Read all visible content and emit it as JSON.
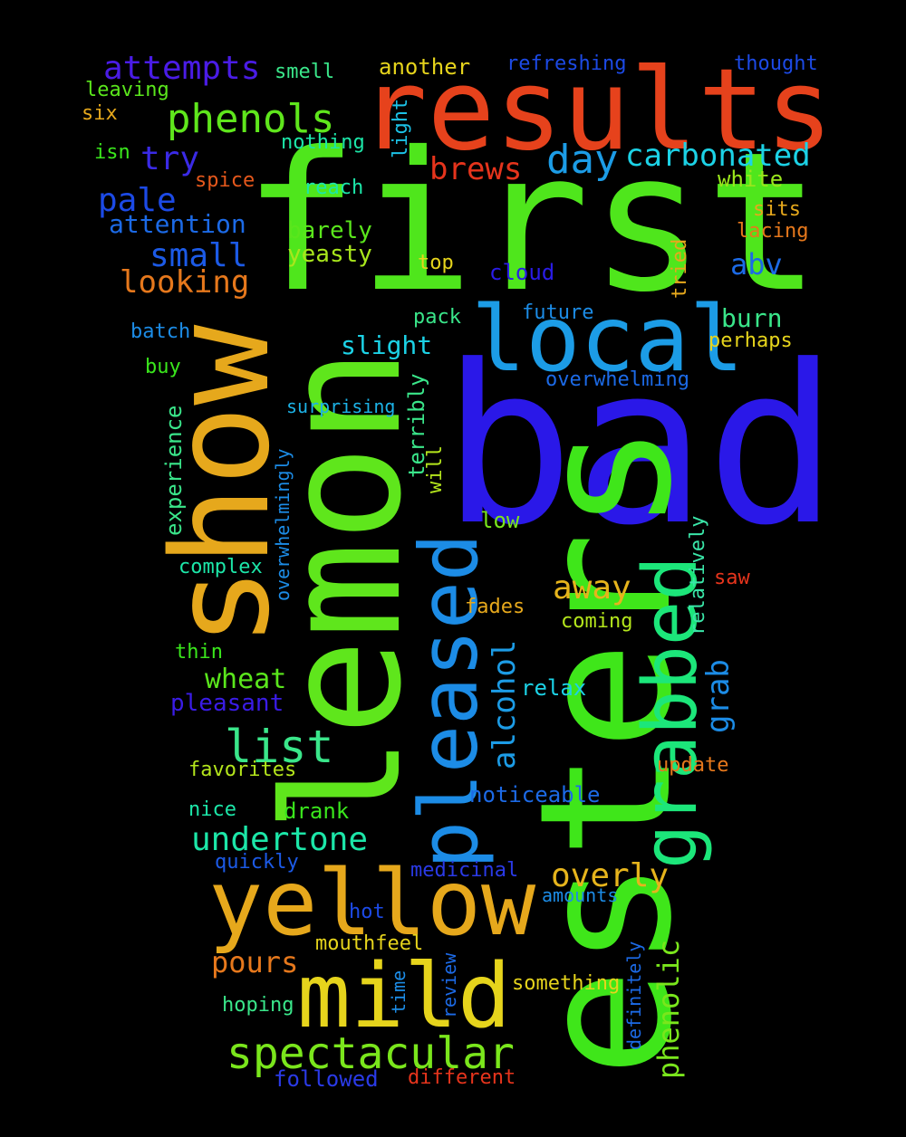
{
  "words": [
    {
      "text": "bad",
      "color": "#2a18e8",
      "rotated": false
    },
    {
      "text": "first",
      "color": "#4fe61c",
      "rotated": false
    },
    {
      "text": "esters",
      "color": "#3fe61a",
      "rotated": true
    },
    {
      "text": "lemon",
      "color": "#5fe61c",
      "rotated": true
    },
    {
      "text": "results",
      "color": "#e6421c",
      "rotated": false
    },
    {
      "text": "show",
      "color": "#e6a81c",
      "rotated": true
    },
    {
      "text": "yellow",
      "color": "#e6a81c",
      "rotated": false
    },
    {
      "text": "mild",
      "color": "#e6d41c",
      "rotated": false
    },
    {
      "text": "local",
      "color": "#1c9ce6",
      "rotated": false
    },
    {
      "text": "pleased",
      "color": "#1c8ce6",
      "rotated": true
    },
    {
      "text": "grabbed",
      "color": "#1ce67a",
      "rotated": true
    },
    {
      "text": "spectacular",
      "color": "#7ae61c",
      "rotated": false
    },
    {
      "text": "phenols",
      "color": "#5fe61c",
      "rotated": false
    },
    {
      "text": "attempts",
      "color": "#4a1ce6",
      "rotated": false
    },
    {
      "text": "carbonated",
      "color": "#1cd2e6",
      "rotated": false
    },
    {
      "text": "day",
      "color": "#1c9ce6",
      "rotated": false
    },
    {
      "text": "brews",
      "color": "#e6341c",
      "rotated": false
    },
    {
      "text": "list",
      "color": "#3ae68a",
      "rotated": false
    },
    {
      "text": "undertone",
      "color": "#1ce6a8",
      "rotated": false
    },
    {
      "text": "overly",
      "color": "#e6b41c",
      "rotated": false
    },
    {
      "text": "away",
      "color": "#e6b41c",
      "rotated": false
    },
    {
      "text": "alcohol",
      "color": "#1c9ce6",
      "rotated": true
    },
    {
      "text": "phenolic",
      "color": "#7ae61c",
      "rotated": true
    },
    {
      "text": "grab",
      "color": "#1c8ce6",
      "rotated": true
    },
    {
      "text": "try",
      "color": "#3a2ae6",
      "rotated": false
    },
    {
      "text": "pale",
      "color": "#1c4ae6",
      "rotated": false
    },
    {
      "text": "small",
      "color": "#1c5ae6",
      "rotated": false
    },
    {
      "text": "looking",
      "color": "#e6781c",
      "rotated": false
    },
    {
      "text": "attention",
      "color": "#1c6ae6",
      "rotated": false
    },
    {
      "text": "wheat",
      "color": "#5ae61c",
      "rotated": false
    },
    {
      "text": "pleasant",
      "color": "#3a1ce6",
      "rotated": false
    },
    {
      "text": "pours",
      "color": "#e6781c",
      "rotated": false
    },
    {
      "text": "abv",
      "color": "#1c6ae6",
      "rotated": false
    },
    {
      "text": "burn",
      "color": "#3ae68a",
      "rotated": false
    },
    {
      "text": "slight",
      "color": "#1cd2e6",
      "rotated": false
    },
    {
      "text": "barely",
      "color": "#5ae61c",
      "rotated": false
    },
    {
      "text": "yeasty",
      "color": "#a8e61c",
      "rotated": false
    },
    {
      "text": "another",
      "color": "#e6d41c",
      "rotated": false
    },
    {
      "text": "refreshing",
      "color": "#1c4ae6",
      "rotated": false
    },
    {
      "text": "thought",
      "color": "#1c4ae6",
      "rotated": false
    },
    {
      "text": "smell",
      "color": "#3ae68a",
      "rotated": false
    },
    {
      "text": "leaving",
      "color": "#5ae61c",
      "rotated": false
    },
    {
      "text": "six",
      "color": "#e6a81c",
      "rotated": false
    },
    {
      "text": "isn",
      "color": "#3ae61c",
      "rotated": false
    },
    {
      "text": "light",
      "color": "#1cc2e6",
      "rotated": true
    },
    {
      "text": "nothing",
      "color": "#1ce6a8",
      "rotated": false
    },
    {
      "text": "spice",
      "color": "#e6581c",
      "rotated": false
    },
    {
      "text": "reach",
      "color": "#1ce6a8",
      "rotated": false
    },
    {
      "text": "white",
      "color": "#9ae61c",
      "rotated": false
    },
    {
      "text": "sits",
      "color": "#e6a81c",
      "rotated": false
    },
    {
      "text": "lacing",
      "color": "#e6781c",
      "rotated": false
    },
    {
      "text": "tried",
      "color": "#e6a81c",
      "rotated": true
    },
    {
      "text": "top",
      "color": "#e6d41c",
      "rotated": false
    },
    {
      "text": "cloud",
      "color": "#2a1ce6",
      "rotated": false
    },
    {
      "text": "future",
      "color": "#1c8ce6",
      "rotated": false
    },
    {
      "text": "pack",
      "color": "#3ae68a",
      "rotated": false
    },
    {
      "text": "perhaps",
      "color": "#e6d41c",
      "rotated": false
    },
    {
      "text": "batch",
      "color": "#1c8ce6",
      "rotated": false
    },
    {
      "text": "buy",
      "color": "#3ae61c",
      "rotated": false
    },
    {
      "text": "overwhelming",
      "color": "#1c6ae6",
      "rotated": false
    },
    {
      "text": "surprising",
      "color": "#1cb2e6",
      "rotated": false
    },
    {
      "text": "terribly",
      "color": "#3ae68a",
      "rotated": true
    },
    {
      "text": "will",
      "color": "#b4e61c",
      "rotated": true
    },
    {
      "text": "experience",
      "color": "#3ae68a",
      "rotated": true
    },
    {
      "text": "overwhelmingly",
      "color": "#1c8ce6",
      "rotated": true
    },
    {
      "text": "low",
      "color": "#7ae61c",
      "rotated": false
    },
    {
      "text": "relatively",
      "color": "#3ae6a8",
      "rotated": true
    },
    {
      "text": "complex",
      "color": "#1ce6a8",
      "rotated": false
    },
    {
      "text": "saw",
      "color": "#e6341c",
      "rotated": false
    },
    {
      "text": "fades",
      "color": "#e6a81c",
      "rotated": false
    },
    {
      "text": "coming",
      "color": "#b4e61c",
      "rotated": false
    },
    {
      "text": "thin",
      "color": "#3ae61c",
      "rotated": false
    },
    {
      "text": "relax",
      "color": "#1cd2e6",
      "rotated": false
    },
    {
      "text": "favorites",
      "color": "#b4e61c",
      "rotated": false
    },
    {
      "text": "update",
      "color": "#e6781c",
      "rotated": false
    },
    {
      "text": "nice",
      "color": "#1ce6a8",
      "rotated": false
    },
    {
      "text": "drank",
      "color": "#3ae61c",
      "rotated": false
    },
    {
      "text": "noticeable",
      "color": "#1c6ae6",
      "rotated": false
    },
    {
      "text": "quickly",
      "color": "#1c5ae6",
      "rotated": false
    },
    {
      "text": "medicinal",
      "color": "#2a3ae6",
      "rotated": false
    },
    {
      "text": "hot",
      "color": "#1c4ae6",
      "rotated": false
    },
    {
      "text": "amounts",
      "color": "#1c8ce6",
      "rotated": false
    },
    {
      "text": "mouthfeel",
      "color": "#e6d41c",
      "rotated": false
    },
    {
      "text": "review",
      "color": "#1c6ae6",
      "rotated": true
    },
    {
      "text": "definitely",
      "color": "#1c6ae6",
      "rotated": true
    },
    {
      "text": "something",
      "color": "#e6d41c",
      "rotated": false
    },
    {
      "text": "hoping",
      "color": "#3ae68a",
      "rotated": false
    },
    {
      "text": "time",
      "color": "#1c8ce6",
      "rotated": true
    },
    {
      "text": "followed",
      "color": "#2a3ae6",
      "rotated": false
    },
    {
      "text": "different",
      "color": "#e6341c",
      "rotated": false
    }
  ]
}
